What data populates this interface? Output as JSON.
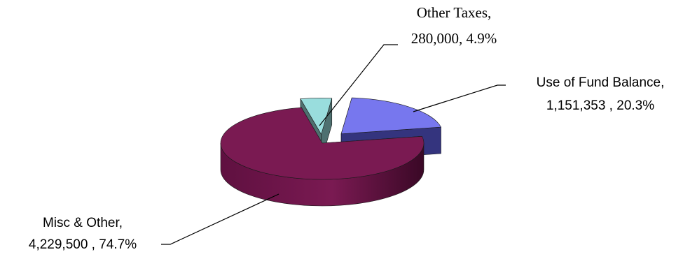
{
  "chart_data": {
    "type": "pie",
    "title": "",
    "slices": [
      {
        "category": "Use of Fund Balance,",
        "value": 1151353,
        "value_label": "1,151,353",
        "percent_label": "20.3%",
        "color": "#7777ee",
        "side_color": "#34347e"
      },
      {
        "category": "Misc & Other,",
        "value": 4229500,
        "value_label": "4,229,500",
        "percent_label": "74.7%",
        "color": "#7a1a52",
        "side_color": "#5a1038"
      },
      {
        "category": "Other Taxes,",
        "value": 280000,
        "value_label": "280,000",
        "percent_label": "4.9%",
        "color": "#99dddd",
        "side_color": "#4e7070"
      }
    ],
    "exploded": [
      "Use of Fund Balance,",
      "Other Taxes,"
    ],
    "legend": "none",
    "style": "3d-exploded"
  }
}
